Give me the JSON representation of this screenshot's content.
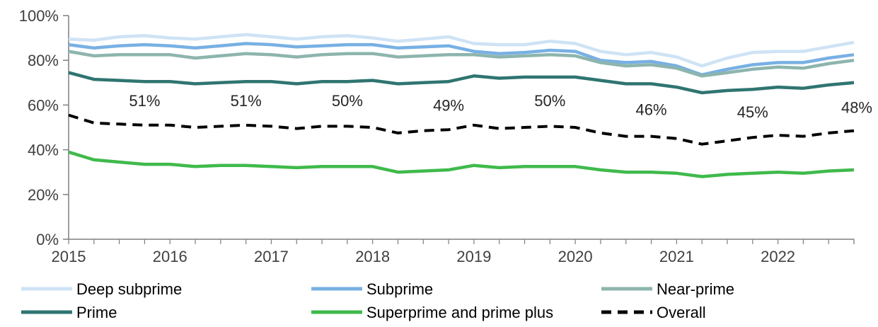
{
  "chart_data": {
    "type": "line",
    "ylim": [
      0,
      100
    ],
    "y_ticks": [
      "0%",
      "20%",
      "40%",
      "60%",
      "80%",
      "100%"
    ],
    "y_tick_values": [
      0,
      20,
      40,
      60,
      80,
      100
    ],
    "xlim": [
      2015,
      2022.75
    ],
    "x_ticks": [
      "2015",
      "2016",
      "2017",
      "2018",
      "2019",
      "2020",
      "2021",
      "2022"
    ],
    "x_tick_values": [
      2015,
      2016,
      2017,
      2018,
      2019,
      2020,
      2021,
      2022
    ],
    "x": [
      2015,
      2015.25,
      2015.5,
      2015.75,
      2016,
      2016.25,
      2016.5,
      2016.75,
      2017,
      2017.25,
      2017.5,
      2017.75,
      2018,
      2018.25,
      2018.5,
      2018.75,
      2019,
      2019.25,
      2019.5,
      2019.75,
      2020,
      2020.25,
      2020.5,
      2020.75,
      2021,
      2021.25,
      2021.5,
      2021.75,
      2022,
      2022.25,
      2022.5,
      2022.75
    ],
    "grid": false,
    "legend_position": "bottom",
    "series": [
      {
        "name": "Deep subprime",
        "color": "#cfe3f5",
        "dash": "solid",
        "values": [
          89.5,
          89,
          90.5,
          91,
          90,
          89.5,
          90.5,
          91.5,
          90.5,
          89.5,
          90.5,
          91,
          90,
          88.5,
          89.5,
          90.5,
          87.5,
          87,
          87,
          88.5,
          87.5,
          84,
          82.5,
          83.5,
          81.5,
          77.5,
          81,
          83.5,
          84,
          84,
          86,
          88
        ]
      },
      {
        "name": "Subprime",
        "color": "#78b0e3",
        "dash": "solid",
        "values": [
          87,
          85.5,
          86.5,
          87,
          86.5,
          85.5,
          86.5,
          87.5,
          87,
          86,
          86.5,
          87,
          87,
          85.5,
          86,
          86.5,
          84,
          83,
          83.5,
          84.5,
          84,
          80,
          79,
          79.5,
          77.5,
          73.5,
          76,
          78,
          79,
          79,
          81,
          82.5
        ]
      },
      {
        "name": "Near-prime",
        "color": "#8db5ad",
        "dash": "solid",
        "values": [
          84,
          82,
          82.5,
          82.5,
          82.5,
          81,
          82,
          83,
          82.5,
          81.5,
          82.5,
          83,
          83,
          81.5,
          82,
          82.5,
          82.5,
          81.5,
          82,
          82.5,
          82,
          79,
          77.5,
          78,
          76.5,
          73,
          74.5,
          76,
          77,
          76.5,
          78.5,
          80
        ]
      },
      {
        "name": "Prime",
        "color": "#2f7571",
        "dash": "solid",
        "values": [
          74.5,
          71.5,
          71,
          70.5,
          70.5,
          69.5,
          70,
          70.5,
          70.5,
          69.5,
          70.5,
          70.5,
          71,
          69.5,
          70,
          70.5,
          73,
          72,
          72.5,
          72.5,
          72.5,
          71,
          69.5,
          69.5,
          68,
          65.5,
          66.5,
          67,
          68,
          67.5,
          69,
          70
        ]
      },
      {
        "name": "Superprime and prime plus",
        "color": "#3fba4b",
        "dash": "solid",
        "values": [
          39,
          35.5,
          34.5,
          33.5,
          33.5,
          32.5,
          33,
          33,
          32.5,
          32,
          32.5,
          32.5,
          32.5,
          30,
          30.5,
          31,
          33,
          32,
          32.5,
          32.5,
          32.5,
          31,
          30,
          30,
          29.5,
          28,
          29,
          29.5,
          30,
          29.5,
          30.5,
          31
        ]
      },
      {
        "name": "Overall",
        "color": "#000000",
        "dash": "dashed",
        "values": [
          55.5,
          52,
          51.5,
          51,
          51,
          50,
          50.5,
          51,
          50.5,
          49.5,
          50.5,
          50.5,
          50,
          47.5,
          48.5,
          49,
          51,
          49.5,
          50,
          50.5,
          50,
          47.5,
          46,
          46,
          45,
          42.5,
          44,
          45.5,
          46.5,
          46,
          47.5,
          48.5
        ]
      }
    ],
    "annotations": [
      {
        "text": "51%",
        "x": 2015.75,
        "y": 62
      },
      {
        "text": "51%",
        "x": 2016.75,
        "y": 62
      },
      {
        "text": "50%",
        "x": 2017.75,
        "y": 62
      },
      {
        "text": "49%",
        "x": 2018.75,
        "y": 60
      },
      {
        "text": "50%",
        "x": 2019.75,
        "y": 62
      },
      {
        "text": "46%",
        "x": 2020.75,
        "y": 58
      },
      {
        "text": "45%",
        "x": 2021.75,
        "y": 57
      },
      {
        "text": "48%",
        "x": 2022.75,
        "y": 59
      }
    ]
  }
}
